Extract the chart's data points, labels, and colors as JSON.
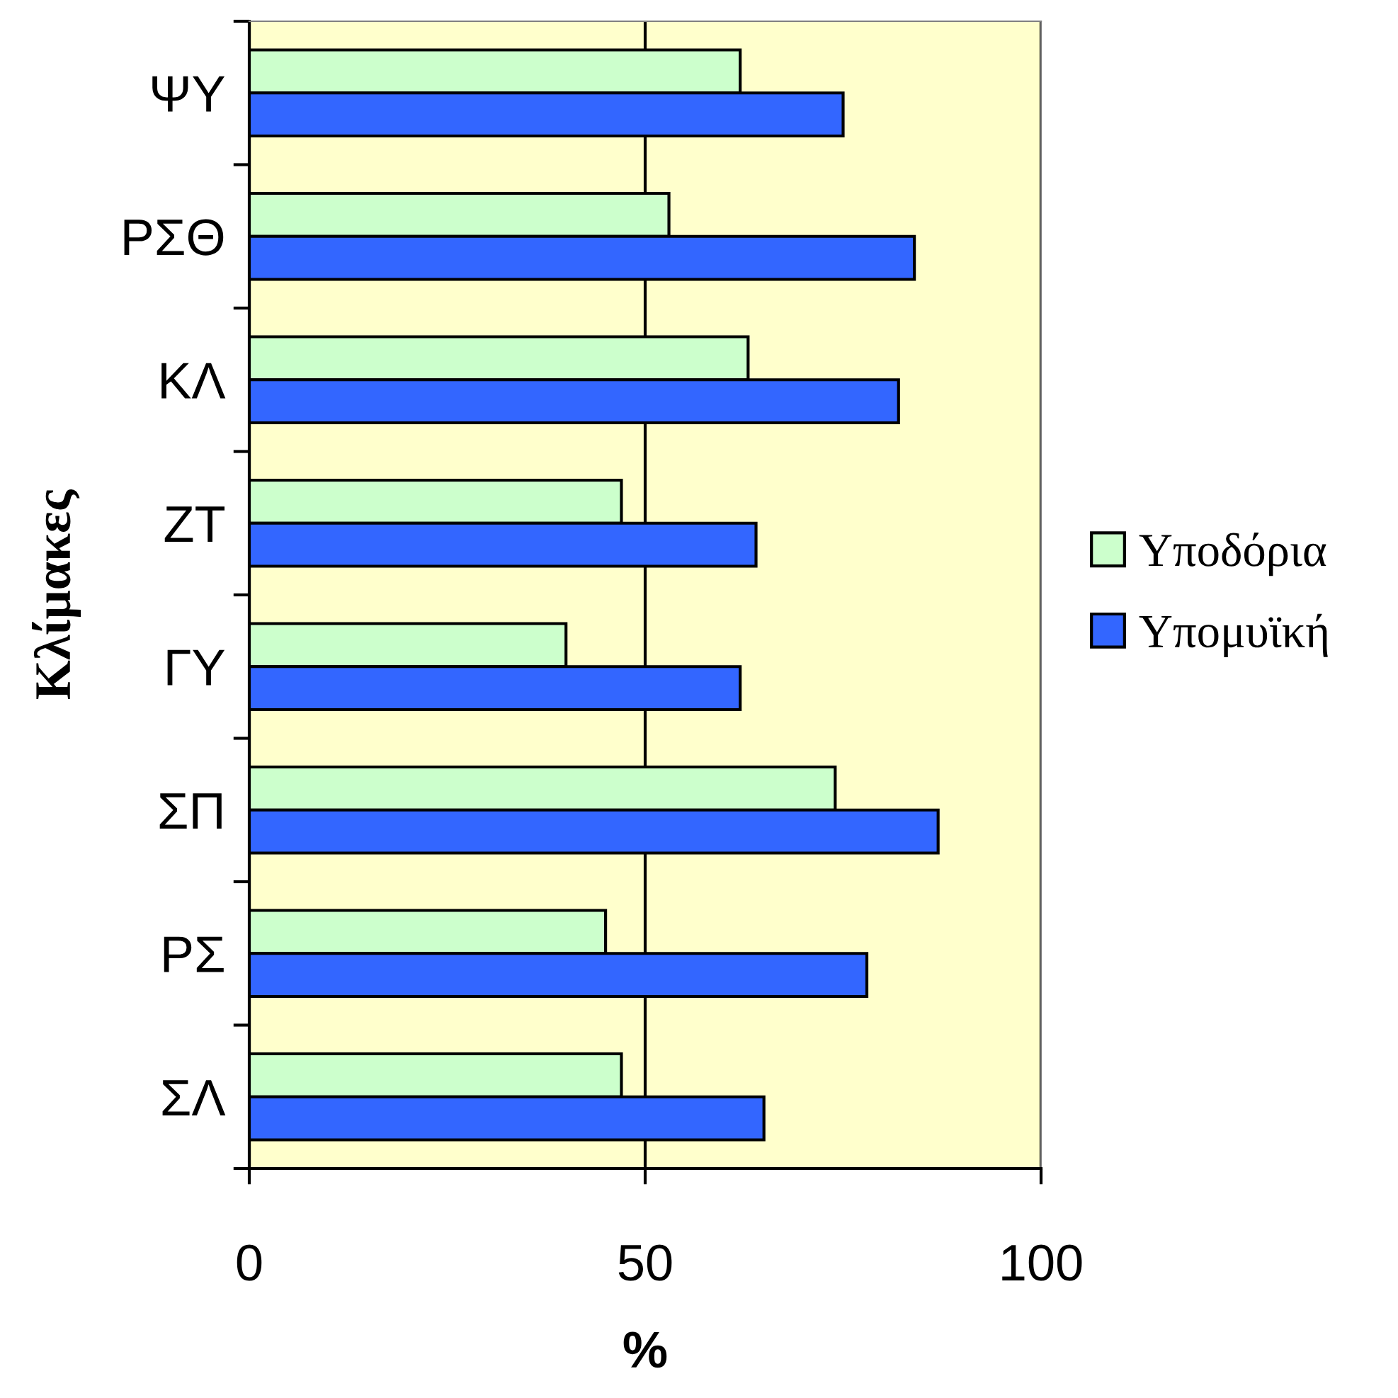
{
  "chart_data": {
    "type": "bar",
    "orientation": "horizontal",
    "xlabel": "%",
    "ylabel": "Κλίμακες",
    "categories": [
      "ΨΥ",
      "ΡΣΘ",
      "ΚΛ",
      "ΖΤ",
      "ΓΥ",
      "ΣΠ",
      "ΡΣ",
      "ΣΛ"
    ],
    "series": [
      {
        "name": "Υποδόρια",
        "color": "#ccffcc",
        "values": [
          62,
          53,
          63,
          47,
          40,
          74,
          45,
          47
        ]
      },
      {
        "name": "Υπομυϊκή",
        "color": "#3366ff",
        "values": [
          75,
          84,
          82,
          64,
          62,
          87,
          78,
          65
        ]
      }
    ],
    "xlim": [
      0,
      100
    ],
    "xticks": [
      0,
      50,
      100
    ],
    "grid": "x",
    "legend": "right"
  }
}
